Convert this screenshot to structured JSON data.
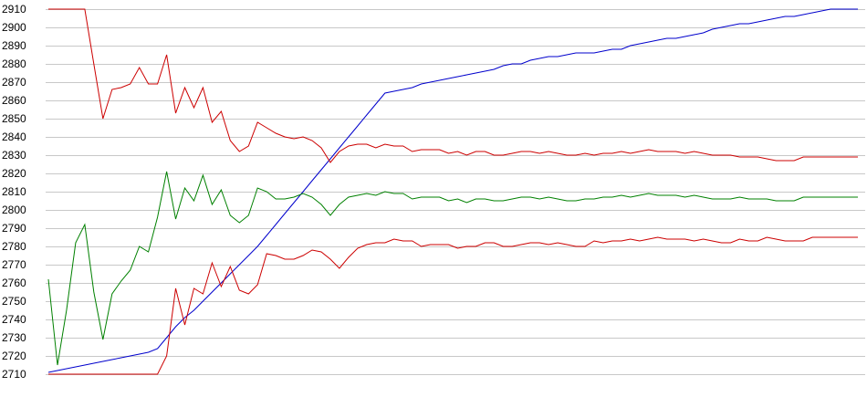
{
  "chart_data": {
    "type": "line",
    "title": "",
    "xlabel": "",
    "ylabel": "",
    "ylim": [
      2710,
      2910
    ],
    "yticks": [
      2710,
      2720,
      2730,
      2740,
      2750,
      2760,
      2770,
      2780,
      2790,
      2800,
      2810,
      2820,
      2830,
      2840,
      2850,
      2860,
      2870,
      2880,
      2890,
      2900,
      2910
    ],
    "grid": true,
    "legend": "none",
    "x": [
      0,
      1,
      2,
      3,
      4,
      5,
      6,
      7,
      8,
      9,
      10,
      11,
      12,
      13,
      14,
      15,
      16,
      17,
      18,
      19,
      20,
      21,
      22,
      23,
      24,
      25,
      26,
      27,
      28,
      29,
      30,
      31,
      32,
      33,
      34,
      35,
      36,
      37,
      38,
      39,
      40,
      41,
      42,
      43,
      44,
      45,
      46,
      47,
      48,
      49,
      50,
      51,
      52,
      53,
      54,
      55,
      56,
      57,
      58,
      59,
      60,
      61,
      62,
      63,
      64,
      65,
      66,
      67,
      68,
      69,
      70,
      71,
      72,
      73,
      74,
      75,
      76,
      77,
      78,
      79,
      80,
      81,
      82,
      83,
      84,
      85,
      86,
      87,
      88,
      89
    ],
    "series": [
      {
        "color": "#0000cc",
        "values": [
          2711,
          2712,
          2713,
          2714,
          2715,
          2716,
          2717,
          2718,
          2719,
          2720,
          2721,
          2722,
          2724,
          2730,
          2736,
          2741,
          2745,
          2750,
          2755,
          2760,
          2765,
          2770,
          2775,
          2780,
          2786,
          2792,
          2798,
          2804,
          2810,
          2816,
          2822,
          2828,
          2834,
          2840,
          2846,
          2852,
          2858,
          2864,
          2865,
          2866,
          2867,
          2869,
          2870,
          2871,
          2872,
          2873,
          2874,
          2875,
          2876,
          2877,
          2879,
          2880,
          2880,
          2882,
          2883,
          2884,
          2884,
          2885,
          2886,
          2886,
          2886,
          2887,
          2888,
          2888,
          2890,
          2891,
          2892,
          2893,
          2894,
          2894,
          2895,
          2896,
          2897,
          2899,
          2900,
          2901,
          2902,
          2902,
          2903,
          2904,
          2905,
          2906,
          2906,
          2907,
          2908,
          2909,
          2910,
          2910,
          2910,
          2910
        ]
      },
      {
        "color": "#cc0000",
        "values": [
          2910,
          2910,
          2910,
          2910,
          2910,
          2880,
          2850,
          2866,
          2867,
          2869,
          2878,
          2869,
          2869,
          2885,
          2853,
          2867,
          2856,
          2867,
          2848,
          2854,
          2838,
          2832,
          2835,
          2848,
          2845,
          2842,
          2840,
          2839,
          2840,
          2838,
          2834,
          2826,
          2832,
          2835,
          2836,
          2836,
          2834,
          2836,
          2835,
          2835,
          2832,
          2833,
          2833,
          2833,
          2831,
          2832,
          2830,
          2832,
          2832,
          2830,
          2830,
          2831,
          2832,
          2832,
          2831,
          2832,
          2831,
          2830,
          2830,
          2831,
          2830,
          2831,
          2831,
          2832,
          2831,
          2832,
          2833,
          2832,
          2832,
          2832,
          2831,
          2832,
          2831,
          2830,
          2830,
          2830,
          2829,
          2829,
          2829,
          2828,
          2827,
          2827,
          2827,
          2829,
          2829,
          2829,
          2829,
          2829,
          2829,
          2829
        ]
      },
      {
        "color": "#008000",
        "values": [
          2762,
          2715,
          2745,
          2782,
          2792,
          2755,
          2729,
          2754,
          2761,
          2767,
          2780,
          2777,
          2796,
          2821,
          2795,
          2812,
          2805,
          2819,
          2803,
          2811,
          2797,
          2793,
          2797,
          2812,
          2810,
          2806,
          2806,
          2807,
          2809,
          2807,
          2803,
          2797,
          2803,
          2807,
          2808,
          2809,
          2808,
          2810,
          2809,
          2809,
          2806,
          2807,
          2807,
          2807,
          2805,
          2806,
          2804,
          2806,
          2806,
          2805,
          2805,
          2806,
          2807,
          2807,
          2806,
          2807,
          2806,
          2805,
          2805,
          2806,
          2806,
          2807,
          2807,
          2808,
          2807,
          2808,
          2809,
          2808,
          2808,
          2808,
          2807,
          2808,
          2807,
          2806,
          2806,
          2806,
          2807,
          2806,
          2806,
          2806,
          2805,
          2805,
          2805,
          2807,
          2807,
          2807,
          2807,
          2807,
          2807,
          2807
        ]
      },
      {
        "color": "#cc0000",
        "values": [
          2710,
          2710,
          2710,
          2710,
          2710,
          2710,
          2710,
          2710,
          2710,
          2710,
          2710,
          2710,
          2710,
          2720,
          2757,
          2737,
          2757,
          2754,
          2771,
          2758,
          2769,
          2756,
          2754,
          2759,
          2776,
          2775,
          2773,
          2773,
          2775,
          2778,
          2777,
          2773,
          2768,
          2774,
          2779,
          2781,
          2782,
          2782,
          2784,
          2783,
          2783,
          2780,
          2781,
          2781,
          2781,
          2779,
          2780,
          2780,
          2782,
          2782,
          2780,
          2780,
          2781,
          2782,
          2782,
          2781,
          2782,
          2781,
          2780,
          2780,
          2783,
          2782,
          2783,
          2783,
          2784,
          2783,
          2784,
          2785,
          2784,
          2784,
          2784,
          2783,
          2784,
          2783,
          2782,
          2782,
          2784,
          2783,
          2783,
          2785,
          2784,
          2783,
          2783,
          2783,
          2785,
          2785,
          2785,
          2785,
          2785,
          2785
        ]
      }
    ]
  }
}
